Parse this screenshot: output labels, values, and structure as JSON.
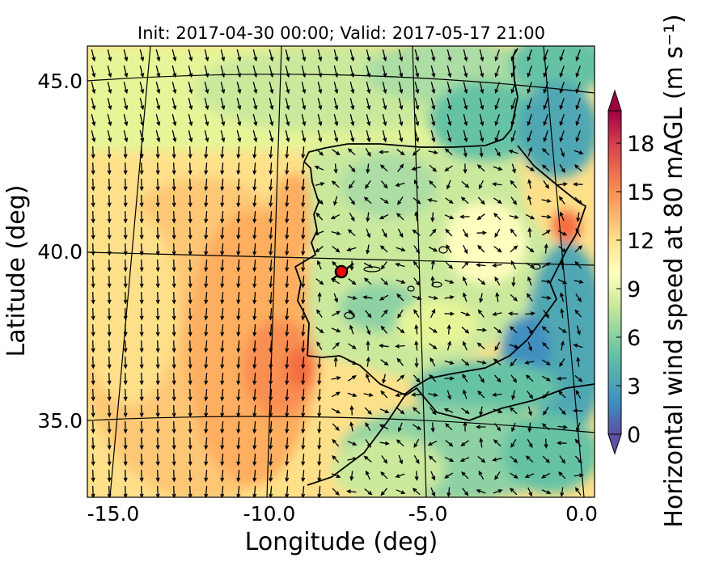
{
  "chart_data": {
    "type": "heatmap",
    "title": "Init: 2017-04-30 00:00; Valid: 2017-05-17 21:00",
    "xlabel": "Longitude (deg)",
    "ylabel": "Latitude (deg)",
    "xlim": [
      -15.8,
      0.2
    ],
    "ylim": [
      32.5,
      46.0
    ],
    "x_ticks": [
      {
        "value": -15.0,
        "label": "-15.0"
      },
      {
        "value": -10.0,
        "label": "-10.0"
      },
      {
        "value": -5.0,
        "label": "-5.0"
      },
      {
        "value": 0.0,
        "label": "0.0"
      }
    ],
    "y_ticks": [
      {
        "value": 45.0,
        "label": "45.0"
      },
      {
        "value": 40.0,
        "label": "40.0"
      },
      {
        "value": 35.0,
        "label": "35.0"
      }
    ],
    "grid": true,
    "colorbar": {
      "label": "Horizontal wind speed at 80 mAGL (m s⁻¹)",
      "range": [
        0,
        20
      ],
      "extend": "both",
      "ticks": [
        {
          "value": 0,
          "label": "0"
        },
        {
          "value": 3,
          "label": "3"
        },
        {
          "value": 6,
          "label": "6"
        },
        {
          "value": 9,
          "label": "9"
        },
        {
          "value": 12,
          "label": "12"
        },
        {
          "value": 15,
          "label": "15"
        },
        {
          "value": 18,
          "label": "18"
        }
      ],
      "levels": 20,
      "colors": [
        "#5e4fa2",
        "#4a6fb2",
        "#3f8fbf",
        "#4fa7b3",
        "#66c2a5",
        "#8ed2a4",
        "#abdda4",
        "#cbe99d",
        "#e6f598",
        "#f4fab0",
        "#ffffbf",
        "#fff0a6",
        "#fee08b",
        "#fdc776",
        "#fdae61",
        "#f98e52",
        "#f46d43",
        "#e45b48",
        "#d53e4f",
        "#b81c4a",
        "#9e0142"
      ]
    },
    "marker": {
      "lon": -7.8,
      "lat": 39.4,
      "color": "#ff0000"
    },
    "field_description": "Strong northerly winds over the Atlantic west of Iberia (12–17 m/s), weaker and variable winds over the Iberian interior (3–10 m/s), calm areas over the Mediterranean coast and Pyrenees (0–4 m/s)."
  }
}
